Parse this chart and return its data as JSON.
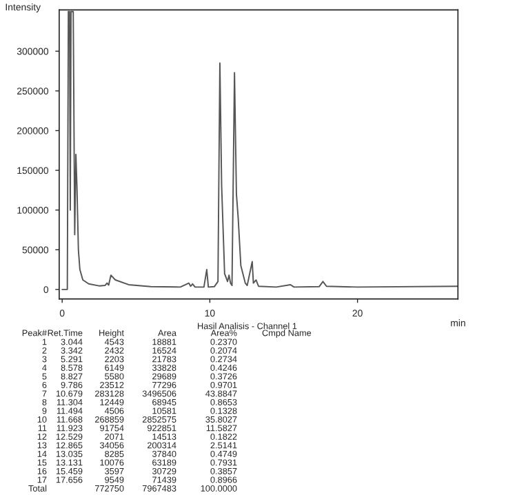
{
  "chart_data": {
    "type": "line",
    "ylabel": "Intensity",
    "xlabel": "min",
    "xlim": [
      -0.2,
      26.8
    ],
    "ylim": [
      -12000,
      352000
    ],
    "xticks": [
      0,
      10,
      20
    ],
    "yticks": [
      0,
      50000,
      100000,
      150000,
      200000,
      250000,
      300000
    ],
    "grid": false,
    "legend": false,
    "marker": "none",
    "line_style": "solid",
    "series": [
      {
        "color": "#555555",
        "x": [
          0,
          0.35,
          0.42,
          0.5,
          0.55,
          0.6,
          0.75,
          0.85,
          0.93,
          1.0,
          1.1,
          1.2,
          1.4,
          1.8,
          2.5,
          2.9,
          3.04,
          3.15,
          3.3,
          3.6,
          4.5,
          6,
          8,
          8.58,
          8.7,
          8.83,
          9.0,
          9.6,
          9.79,
          9.9,
          10.3,
          10.55,
          10.68,
          10.8,
          11.0,
          11.2,
          11.3,
          11.4,
          11.5,
          11.67,
          11.8,
          11.92,
          12.1,
          12.4,
          12.53,
          12.87,
          12.95,
          13.04,
          13.13,
          13.3,
          14.5,
          15.46,
          15.7,
          17.4,
          17.66,
          17.9,
          20,
          26.8
        ],
        "values": [
          0,
          0,
          350000,
          350000,
          100000,
          350000,
          350000,
          69000,
          170000,
          130000,
          50000,
          25000,
          12000,
          7000,
          4500,
          5000,
          8000,
          5500,
          18000,
          12000,
          6000,
          3500,
          3000,
          8000,
          4000,
          7000,
          3000,
          3000,
          25000,
          3000,
          3500,
          10000,
          285000,
          130000,
          20000,
          10000,
          18000,
          8000,
          5000,
          273000,
          120000,
          90000,
          30000,
          8000,
          5000,
          35000,
          8000,
          10000,
          12000,
          4000,
          3000,
          6000,
          3000,
          3500,
          10000,
          4000,
          3000,
          4000
        ]
      }
    ],
    "annotations": [
      "Hasil Analisis - Channel 1",
      "Peak#",
      "Ret.Time",
      "Height",
      "Area",
      "Area%",
      "Cmpd Name",
      "1",
      "3.044",
      "4543",
      "18881",
      "0.2370",
      "2",
      "3.342",
      "2432",
      "16524",
      "0.2074",
      "3",
      "5.291",
      "2203",
      "21783",
      "0.2734",
      "4",
      "8.578",
      "6149",
      "33828",
      "0.4246",
      "5",
      "8.827",
      "5580",
      "29689",
      "0.3726",
      "6",
      "9.786",
      "23512",
      "77296",
      "0.9701",
      "7",
      "10.679",
      "283128",
      "3496506",
      "43.8847",
      "8",
      "11.304",
      "12449",
      "68945",
      "0.8653",
      "9",
      "11.494",
      "4506",
      "10581",
      "0.1328",
      "10",
      "11.668",
      "268859",
      "2852575",
      "35.8027",
      "11",
      "11.923",
      "91754",
      "922851",
      "11.5827",
      "12",
      "12.529",
      "2071",
      "14513",
      "0.1822",
      "13",
      "12.865",
      "34056",
      "200314",
      "2.5141",
      "14",
      "13.035",
      "8285",
      "37840",
      "0.4749",
      "15",
      "13.131",
      "10076",
      "63189",
      "0.7931",
      "16",
      "15.459",
      "3597",
      "30729",
      "0.3857",
      "17",
      "17.656",
      "9549",
      "71439",
      "0.8966",
      "Total",
      "772750",
      "7967483",
      "100.0000"
    ]
  }
}
